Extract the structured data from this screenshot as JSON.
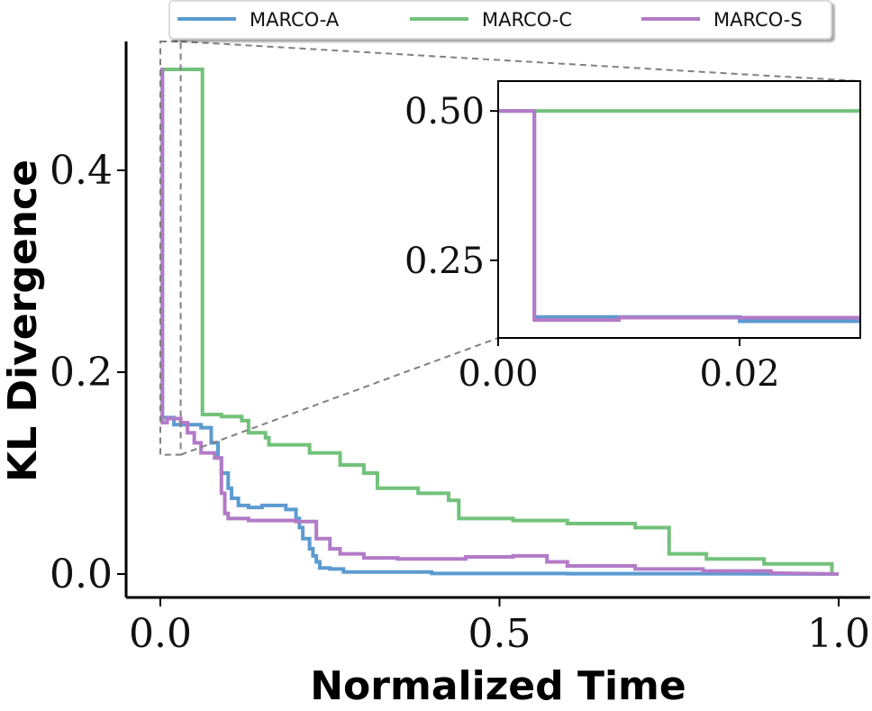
{
  "chart_data": {
    "type": "line",
    "title": "",
    "xlabel": "Normalized Time",
    "ylabel": "KL Divergence",
    "xlim": [
      -0.05,
      1.05
    ],
    "ylim": [
      -0.025,
      0.52
    ],
    "xticks": [
      0.0,
      0.5,
      1.0
    ],
    "xtick_labels": [
      "0.0",
      "0.5",
      "1.0"
    ],
    "yticks": [
      0.0,
      0.2,
      0.4
    ],
    "ytick_labels": [
      "0.0",
      "0.2",
      "0.4"
    ],
    "legend": {
      "placement": "top-center",
      "entries": [
        "MARCO-A",
        "MARCO-C",
        "MARCO-S"
      ]
    },
    "series": [
      {
        "name": "MARCO-A",
        "color": "#5b9bd0",
        "points": [
          [
            0.0,
            0.5
          ],
          [
            0.003,
            0.5
          ],
          [
            0.003,
            0.155
          ],
          [
            0.02,
            0.155
          ],
          [
            0.02,
            0.148
          ],
          [
            0.06,
            0.148
          ],
          [
            0.06,
            0.145
          ],
          [
            0.075,
            0.145
          ],
          [
            0.075,
            0.13
          ],
          [
            0.085,
            0.13
          ],
          [
            0.085,
            0.115
          ],
          [
            0.09,
            0.115
          ],
          [
            0.09,
            0.1
          ],
          [
            0.1,
            0.1
          ],
          [
            0.1,
            0.085
          ],
          [
            0.105,
            0.085
          ],
          [
            0.105,
            0.075
          ],
          [
            0.115,
            0.075
          ],
          [
            0.115,
            0.068
          ],
          [
            0.13,
            0.068
          ],
          [
            0.13,
            0.066
          ],
          [
            0.15,
            0.066
          ],
          [
            0.15,
            0.068
          ],
          [
            0.185,
            0.068
          ],
          [
            0.185,
            0.064
          ],
          [
            0.2,
            0.064
          ],
          [
            0.2,
            0.055
          ],
          [
            0.205,
            0.055
          ],
          [
            0.205,
            0.046
          ],
          [
            0.21,
            0.046
          ],
          [
            0.21,
            0.035
          ],
          [
            0.22,
            0.035
          ],
          [
            0.22,
            0.025
          ],
          [
            0.225,
            0.025
          ],
          [
            0.225,
            0.018
          ],
          [
            0.23,
            0.018
          ],
          [
            0.23,
            0.012
          ],
          [
            0.235,
            0.012
          ],
          [
            0.235,
            0.006
          ],
          [
            0.25,
            0.006
          ],
          [
            0.25,
            0.005
          ],
          [
            0.27,
            0.005
          ],
          [
            0.27,
            0.002
          ],
          [
            0.4,
            0.002
          ],
          [
            0.4,
            0.0006
          ],
          [
            0.6,
            0.0006
          ],
          [
            0.6,
            0.0003
          ],
          [
            0.8,
            0.0003
          ],
          [
            1.0,
            0.0
          ]
        ]
      },
      {
        "name": "MARCO-C",
        "color": "#72c27a",
        "points": [
          [
            0.0,
            0.5
          ],
          [
            0.062,
            0.5
          ],
          [
            0.062,
            0.158
          ],
          [
            0.09,
            0.158
          ],
          [
            0.09,
            0.156
          ],
          [
            0.12,
            0.156
          ],
          [
            0.12,
            0.152
          ],
          [
            0.13,
            0.152
          ],
          [
            0.13,
            0.14
          ],
          [
            0.155,
            0.14
          ],
          [
            0.155,
            0.135
          ],
          [
            0.16,
            0.135
          ],
          [
            0.16,
            0.128
          ],
          [
            0.22,
            0.128
          ],
          [
            0.22,
            0.12
          ],
          [
            0.265,
            0.12
          ],
          [
            0.265,
            0.108
          ],
          [
            0.3,
            0.108
          ],
          [
            0.3,
            0.1
          ],
          [
            0.32,
            0.1
          ],
          [
            0.32,
            0.085
          ],
          [
            0.38,
            0.085
          ],
          [
            0.38,
            0.08
          ],
          [
            0.425,
            0.08
          ],
          [
            0.425,
            0.073
          ],
          [
            0.44,
            0.073
          ],
          [
            0.44,
            0.055
          ],
          [
            0.52,
            0.055
          ],
          [
            0.52,
            0.053
          ],
          [
            0.6,
            0.053
          ],
          [
            0.6,
            0.05
          ],
          [
            0.7,
            0.05
          ],
          [
            0.7,
            0.046
          ],
          [
            0.75,
            0.046
          ],
          [
            0.75,
            0.02
          ],
          [
            0.805,
            0.02
          ],
          [
            0.805,
            0.015
          ],
          [
            0.89,
            0.015
          ],
          [
            0.89,
            0.01
          ],
          [
            0.99,
            0.01
          ],
          [
            0.99,
            0.0
          ],
          [
            1.0,
            0.0
          ]
        ]
      },
      {
        "name": "MARCO-S",
        "color": "#b37ac8",
        "points": [
          [
            0.0,
            0.5
          ],
          [
            0.003,
            0.5
          ],
          [
            0.003,
            0.15
          ],
          [
            0.01,
            0.15
          ],
          [
            0.01,
            0.154
          ],
          [
            0.03,
            0.154
          ],
          [
            0.03,
            0.15
          ],
          [
            0.04,
            0.15
          ],
          [
            0.04,
            0.14
          ],
          [
            0.05,
            0.14
          ],
          [
            0.05,
            0.13
          ],
          [
            0.06,
            0.13
          ],
          [
            0.06,
            0.12
          ],
          [
            0.08,
            0.12
          ],
          [
            0.08,
            0.115
          ],
          [
            0.09,
            0.115
          ],
          [
            0.09,
            0.105
          ],
          [
            0.09,
            0.08
          ],
          [
            0.095,
            0.08
          ],
          [
            0.095,
            0.06
          ],
          [
            0.1,
            0.06
          ],
          [
            0.1,
            0.055
          ],
          [
            0.13,
            0.055
          ],
          [
            0.13,
            0.053
          ],
          [
            0.2,
            0.053
          ],
          [
            0.2,
            0.052
          ],
          [
            0.23,
            0.052
          ],
          [
            0.23,
            0.035
          ],
          [
            0.25,
            0.035
          ],
          [
            0.25,
            0.025
          ],
          [
            0.265,
            0.025
          ],
          [
            0.265,
            0.02
          ],
          [
            0.3,
            0.02
          ],
          [
            0.3,
            0.016
          ],
          [
            0.35,
            0.016
          ],
          [
            0.35,
            0.015
          ],
          [
            0.45,
            0.015
          ],
          [
            0.45,
            0.017
          ],
          [
            0.52,
            0.017
          ],
          [
            0.52,
            0.018
          ],
          [
            0.57,
            0.018
          ],
          [
            0.57,
            0.012
          ],
          [
            0.6,
            0.012
          ],
          [
            0.6,
            0.008
          ],
          [
            0.7,
            0.008
          ],
          [
            0.7,
            0.005
          ],
          [
            0.8,
            0.005
          ],
          [
            0.8,
            0.003
          ],
          [
            0.9,
            0.003
          ],
          [
            0.9,
            0.001
          ],
          [
            1.0,
            0.0
          ]
        ]
      }
    ],
    "inset": {
      "xlim": [
        0.0,
        0.03
      ],
      "ylim": [
        0.12,
        0.55
      ],
      "xticks": [
        0.0,
        0.02
      ],
      "xtick_labels": [
        "0.00",
        "0.02"
      ],
      "yticks": [
        0.25,
        0.5
      ],
      "ytick_labels": [
        "0.25",
        "0.50"
      ],
      "source_region": {
        "xlim": [
          0.0,
          0.03
        ],
        "ylim": [
          0.12,
          0.5
        ]
      }
    }
  }
}
